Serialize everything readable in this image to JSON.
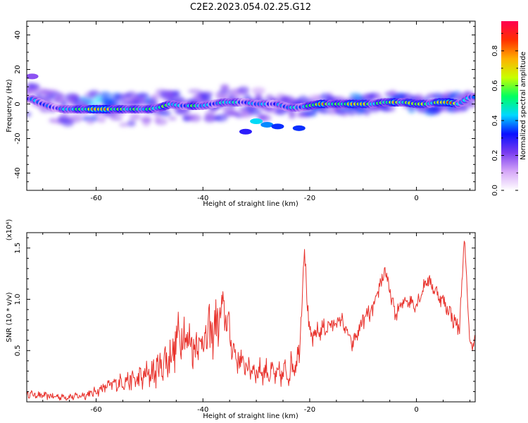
{
  "figure_title": "C2E2.2023.054.02.25.G12",
  "colors": {
    "snr_line": "#e8312b",
    "axis": "#000000",
    "spectrogram_background": "#ffffff"
  },
  "chart_data": [
    {
      "type": "heatmap",
      "title": "C2E2.2023.054.02.25.G12",
      "xlabel": "Height of straight line (km)",
      "ylabel": "Frequency (Hz)",
      "xlim": [
        -73,
        11
      ],
      "ylim": [
        -50,
        48
      ],
      "x_ticks": [
        -60,
        -40,
        -20,
        0
      ],
      "y_ticks": [
        40,
        20,
        0,
        -20,
        -40
      ],
      "colorbar": {
        "label": "Normalized spectral amplitude",
        "range": [
          0,
          0.97
        ],
        "ticks": [
          0.0,
          0.2,
          0.4,
          0.6,
          0.8
        ],
        "colormap": [
          "#ffffff",
          "#d6a8f8",
          "#7a3cf0",
          "#0a10ff",
          "#00d8ff",
          "#00ff60",
          "#c8ff00",
          "#ffb000",
          "#ff3000",
          "#ff0050"
        ]
      },
      "ridge": {
        "x": [
          -72,
          -70,
          -68,
          -66,
          -64,
          -62,
          -60,
          -58,
          -56,
          -54,
          -52,
          -50,
          -48,
          -46,
          -44,
          -42,
          -40,
          -38,
          -36,
          -34,
          -32,
          -30,
          -28,
          -26,
          -24,
          -22,
          -20,
          -18,
          -16,
          -14,
          -12,
          -10,
          -8,
          -6,
          -4,
          -2,
          0,
          2,
          4,
          6,
          8,
          10
        ],
        "y": [
          3,
          0,
          -2,
          -3,
          -3,
          -3,
          -3,
          -3,
          -3,
          -3,
          -3,
          -3,
          -2,
          0,
          -1,
          -1,
          -1,
          0,
          1,
          1,
          1,
          0,
          0,
          0,
          -2,
          -2,
          -1,
          0,
          0,
          0,
          0,
          0,
          0,
          1,
          1,
          1,
          0,
          0,
          1,
          1,
          0,
          4
        ],
        "amplitude": [
          0.45,
          0.4,
          0.45,
          0.5,
          0.5,
          0.85,
          0.95,
          0.8,
          0.85,
          0.6,
          0.55,
          0.75,
          0.6,
          0.6,
          0.55,
          0.6,
          0.5,
          0.55,
          0.5,
          0.55,
          0.5,
          0.45,
          0.45,
          0.5,
          0.45,
          0.5,
          0.75,
          0.85,
          0.7,
          0.8,
          0.75,
          0.95,
          0.7,
          0.55,
          0.9,
          0.75,
          0.75,
          0.7,
          0.8,
          0.95,
          0.7,
          0.5
        ]
      },
      "secondary_features": [
        {
          "x": -30,
          "y": -10,
          "amplitude": 0.45
        },
        {
          "x": -28,
          "y": -12,
          "amplitude": 0.4
        },
        {
          "x": -26,
          "y": -13,
          "amplitude": 0.35
        },
        {
          "x": -22,
          "y": -14,
          "amplitude": 0.35
        },
        {
          "x": -32,
          "y": -16,
          "amplitude": 0.3
        },
        {
          "x": -72,
          "y": 16,
          "amplitude": 0.2
        }
      ]
    },
    {
      "type": "line",
      "xlabel": "Height of straight line (km)",
      "ylabel": "SNR (10 * v/v)",
      "y_multiplier": "(x10⁴)",
      "xlim": [
        -73,
        11
      ],
      "ylim": [
        0,
        1.65
      ],
      "x_ticks": [
        -60,
        -40,
        -20,
        0
      ],
      "y_ticks": [
        0.5,
        1.0,
        1.5
      ],
      "y_tick_labels": [
        "0.5",
        "1.0",
        "1.5"
      ],
      "series": [
        {
          "x": [
            -73,
            -70,
            -67,
            -64,
            -61,
            -58,
            -55,
            -52,
            -49,
            -46,
            -44,
            -42,
            -40,
            -38,
            -36,
            -34,
            -32,
            -30,
            -28,
            -26,
            -24,
            -22,
            -21,
            -20,
            -18,
            -16,
            -14,
            -12,
            -10,
            -8,
            -6,
            -4,
            -2,
            0,
            2,
            4,
            6,
            8,
            9,
            10,
            11
          ],
          "y": [
            0.08,
            0.06,
            0.05,
            0.05,
            0.08,
            0.15,
            0.2,
            0.22,
            0.3,
            0.45,
            0.7,
            0.55,
            0.6,
            0.7,
            0.9,
            0.45,
            0.35,
            0.3,
            0.3,
            0.25,
            0.3,
            0.45,
            1.5,
            0.6,
            0.7,
            0.75,
            0.8,
            0.55,
            0.8,
            0.9,
            1.3,
            0.85,
            1.0,
            0.95,
            1.2,
            1.05,
            0.9,
            0.7,
            1.6,
            0.55,
            0.6
          ],
          "noise_amplitude": [
            0.03,
            0.03,
            0.03,
            0.03,
            0.04,
            0.05,
            0.07,
            0.1,
            0.14,
            0.18,
            0.22,
            0.18,
            0.2,
            0.22,
            0.18,
            0.12,
            0.1,
            0.1,
            0.1,
            0.1,
            0.12,
            0.12,
            0.08,
            0.1,
            0.08,
            0.07,
            0.06,
            0.06,
            0.07,
            0.08,
            0.08,
            0.06,
            0.06,
            0.06,
            0.06,
            0.06,
            0.07,
            0.08,
            0.05,
            0.06,
            0.05
          ]
        }
      ]
    }
  ]
}
